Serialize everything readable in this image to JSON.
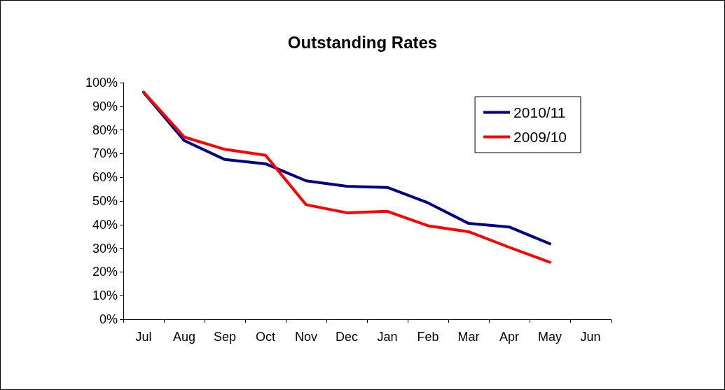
{
  "chart_data": {
    "type": "line",
    "title": "Outstanding Rates",
    "categories": [
      "Jul",
      "Aug",
      "Sep",
      "Oct",
      "Nov",
      "Dec",
      "Jan",
      "Feb",
      "Mar",
      "Apr",
      "May",
      "Jun"
    ],
    "series": [
      {
        "name": "2010/11",
        "color": "#000080",
        "values": [
          95.9,
          75.5,
          67.5,
          65.7,
          58.5,
          56.2,
          55.7,
          49.2,
          40.5,
          39,
          31.9,
          null
        ]
      },
      {
        "name": "2009/10",
        "color": "#ff0000",
        "values": [
          96,
          77,
          71.8,
          69.3,
          48.4,
          45,
          45.6,
          39.5,
          37,
          30.4,
          24.1,
          null
        ]
      }
    ],
    "ylim": [
      0,
      100
    ],
    "yticks": [
      {
        "value": 0,
        "label": "0%"
      },
      {
        "value": 10,
        "label": "10%"
      },
      {
        "value": 20,
        "label": "20%"
      },
      {
        "value": 30,
        "label": "30%"
      },
      {
        "value": 40,
        "label": "40%"
      },
      {
        "value": 50,
        "label": "50%"
      },
      {
        "value": 60,
        "label": "60%"
      },
      {
        "value": 70,
        "label": "70%"
      },
      {
        "value": 80,
        "label": "80%"
      },
      {
        "value": 90,
        "label": "90%"
      },
      {
        "value": 100,
        "label": "100%"
      }
    ],
    "grid": false,
    "legend": "top right",
    "marker": "none",
    "line_style": "solid"
  }
}
